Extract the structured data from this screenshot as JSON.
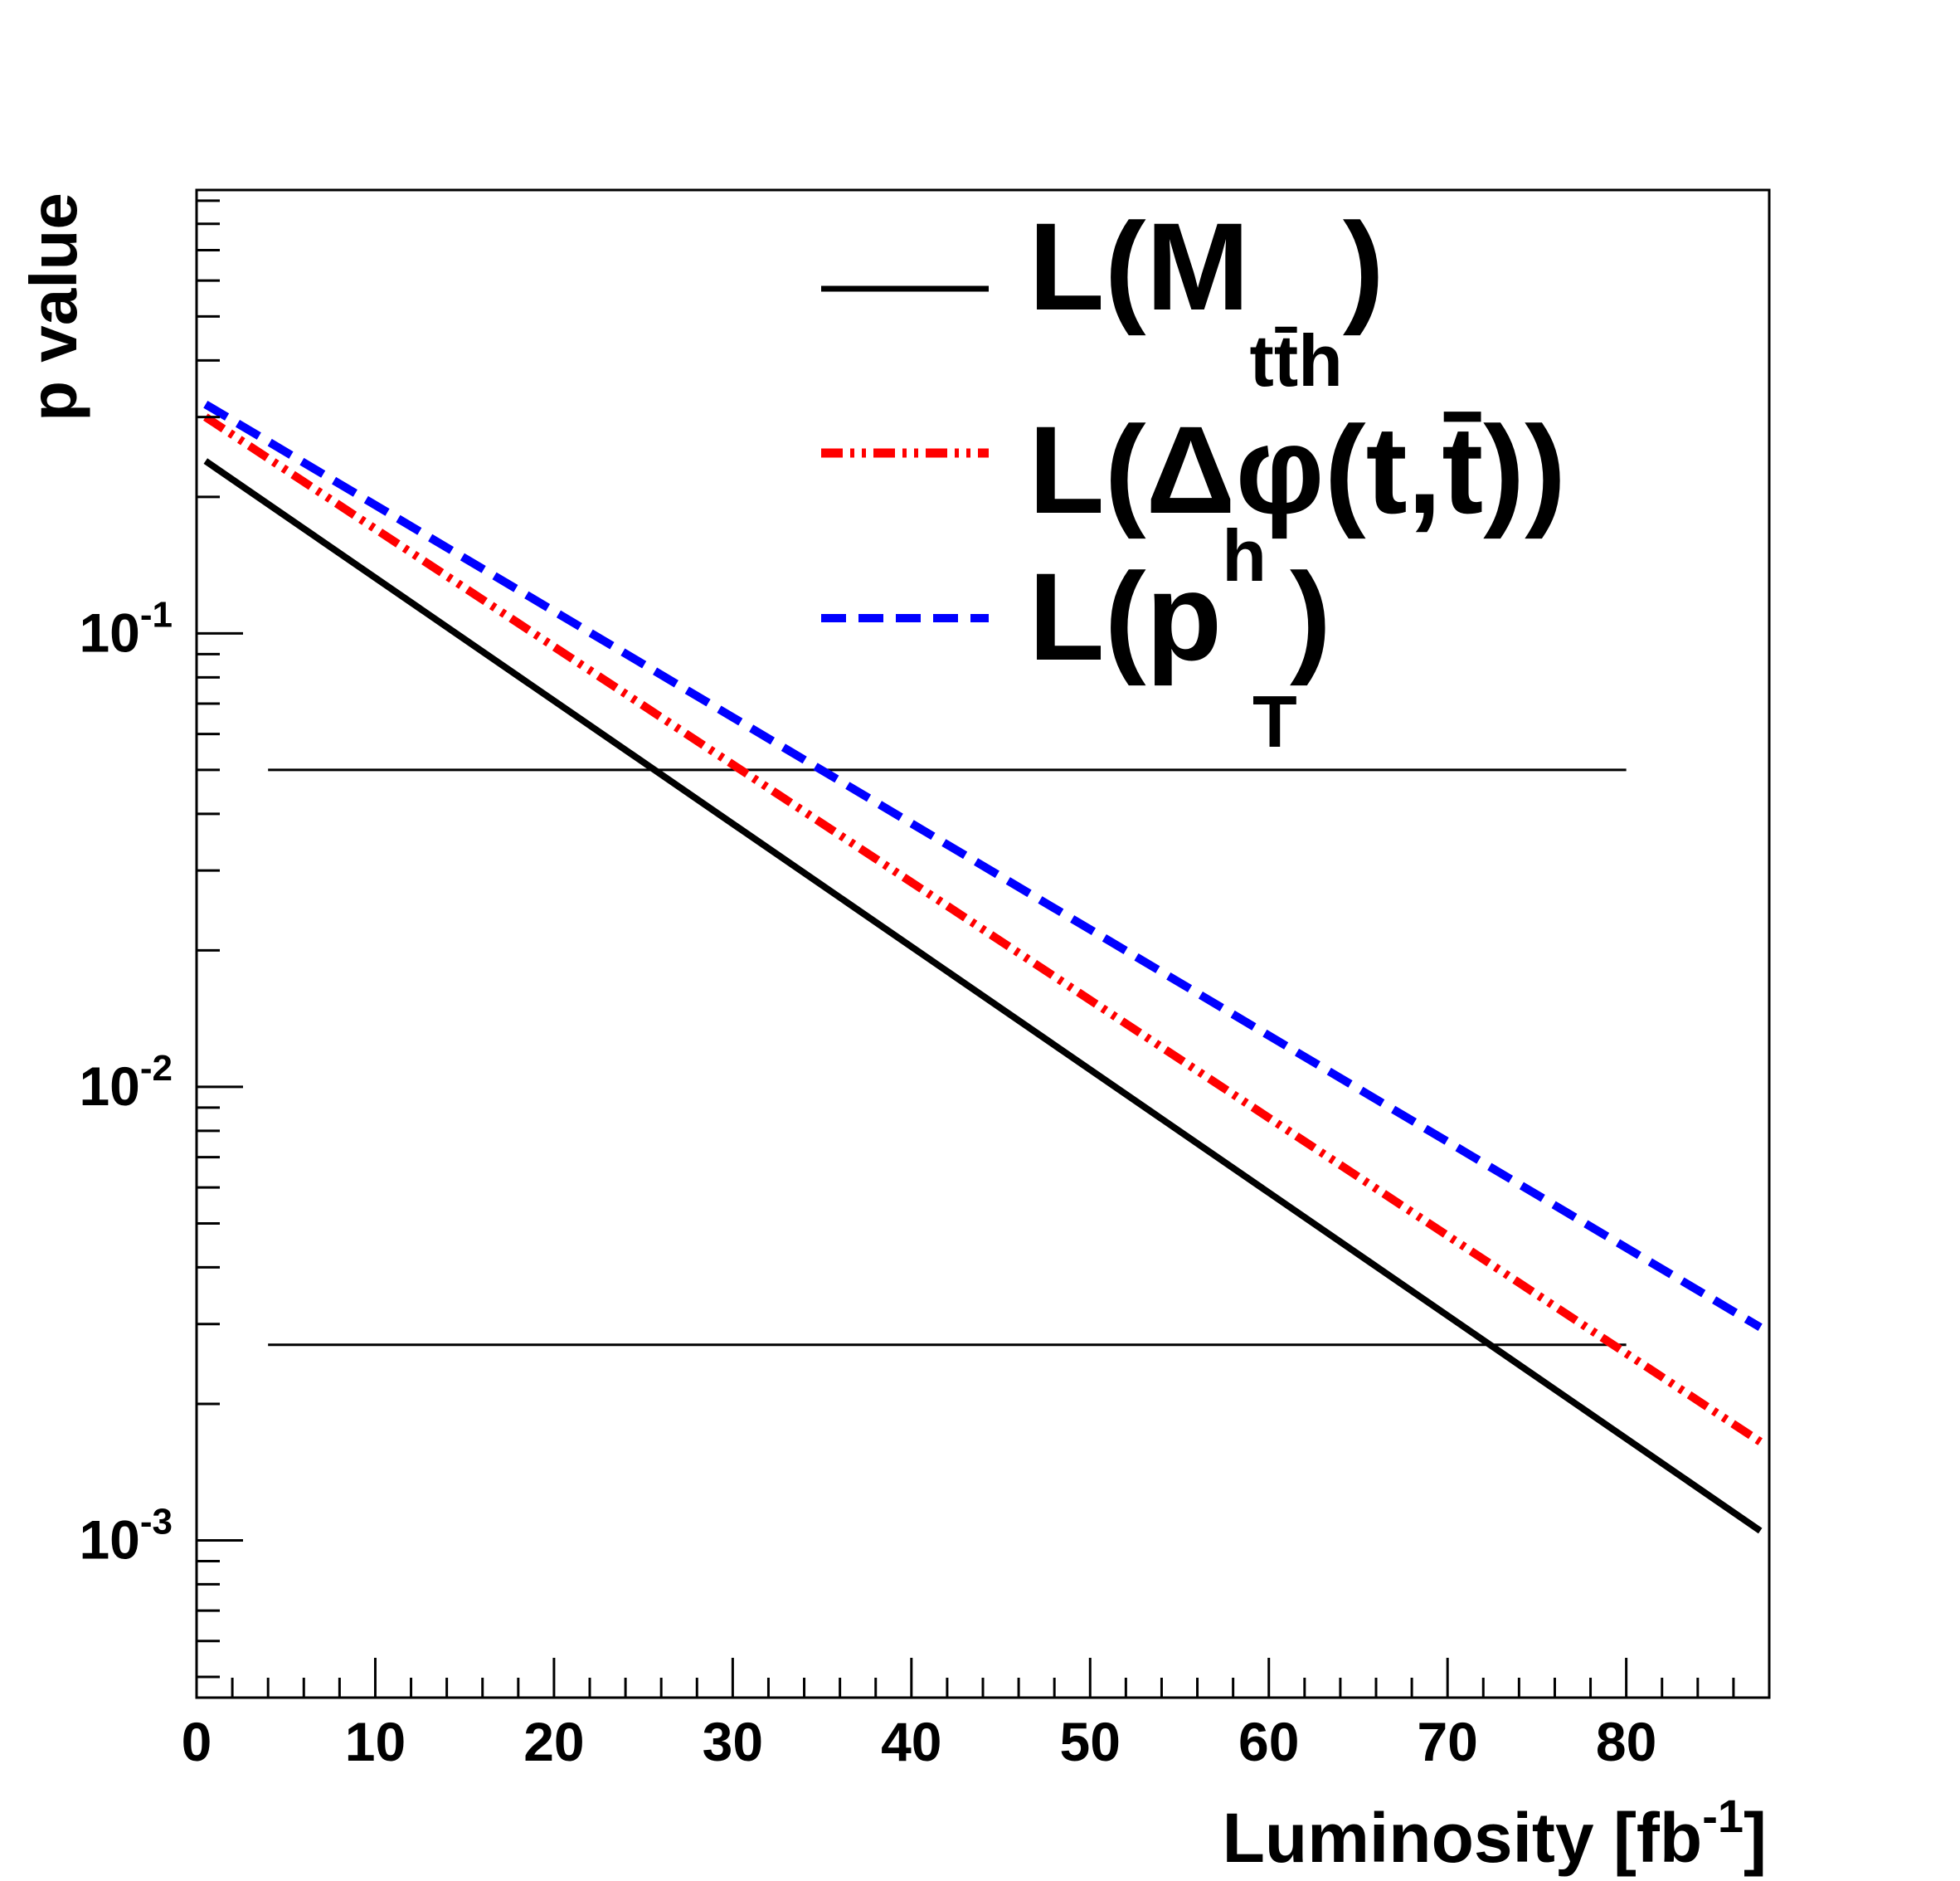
{
  "chart_data": {
    "type": "line",
    "title": "",
    "xlabel": {
      "main": "Luminosity [fb",
      "sup": "-1",
      "close": "]"
    },
    "ylabel": "p value",
    "xlim": [
      0,
      88
    ],
    "ylim": [
      0.00045,
      0.95
    ],
    "yscale": "log",
    "x_ticks": [
      0,
      10,
      20,
      30,
      40,
      50,
      60,
      70,
      80
    ],
    "x_tick_labels": [
      "0",
      "10",
      "20",
      "30",
      "40",
      "50",
      "60",
      "70",
      "80"
    ],
    "y_ticks": [
      {
        "value": 0.1,
        "base": "10",
        "exp": "-1"
      },
      {
        "value": 0.01,
        "base": "10",
        "exp": "-2"
      },
      {
        "value": 0.001,
        "base": "10",
        "exp": "-3"
      }
    ],
    "series": [
      {
        "name": "L(M_tt̄h)",
        "color": "#000000",
        "style": "solid",
        "x": [
          0.5,
          87.5
        ],
        "y": [
          0.24,
          0.00105
        ]
      },
      {
        "name": "L(Δφ(t,t̄))",
        "color": "#ff0000",
        "style": "dashdot",
        "x": [
          0.5,
          87.5
        ],
        "y": [
          0.3,
          0.00165
        ]
      },
      {
        "name": "L(p_T^h)",
        "color": "#0000ff",
        "style": "dashed",
        "x": [
          0.5,
          87.5
        ],
        "y": [
          0.32,
          0.00295
        ]
      }
    ],
    "reference_lines": [
      {
        "y": 0.05,
        "x_start": 4,
        "x_end": 80,
        "color": "#000000"
      },
      {
        "y": 0.0027,
        "x_start": 4,
        "x_end": 80,
        "color": "#000000"
      }
    ],
    "legend": {
      "position": "top-right",
      "entries": [
        {
          "prefix": "L(M",
          "sub": "tt̄h",
          "suffix": ")"
        },
        {
          "text": "L(Δφ(t,t̄))"
        },
        {
          "prefix": "L(p",
          "sup": "h",
          "sub": "T",
          "suffix": ")"
        }
      ]
    }
  }
}
